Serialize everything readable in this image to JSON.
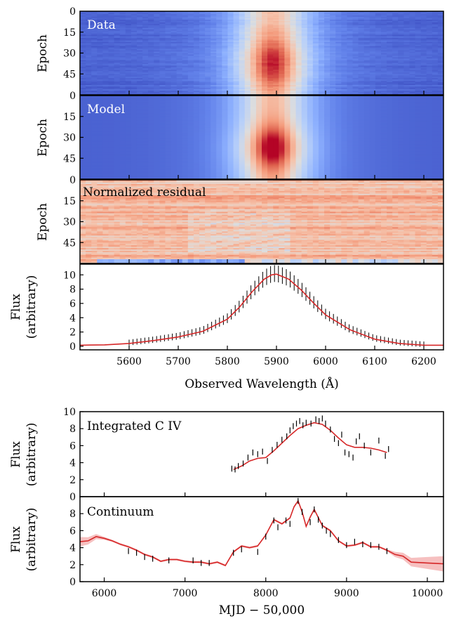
{
  "chart_data": [
    {
      "type": "heatmap",
      "label": "Data",
      "ylabel": "Epoch",
      "yticks": [
        0,
        15,
        30,
        45
      ],
      "ylim": [
        0,
        60
      ],
      "colormap": "coolwarm"
    },
    {
      "type": "heatmap",
      "label": "Model",
      "ylabel": "Epoch",
      "yticks": [
        0,
        15,
        30,
        45
      ],
      "ylim": [
        0,
        60
      ],
      "colormap": "coolwarm"
    },
    {
      "type": "heatmap",
      "label": "Normalized residual",
      "ylabel": "Epoch",
      "yticks": [
        0,
        15,
        30,
        45
      ],
      "ylim": [
        0,
        60
      ],
      "colormap": "coolwarm"
    },
    {
      "type": "line",
      "ylabel": [
        "Flux",
        "(arbitrary)"
      ],
      "xlabel": "Observed Wavelength (Å)",
      "xlim": [
        5500,
        6240
      ],
      "ylim": [
        -0.5,
        11.5
      ],
      "xticks": [
        5600,
        5700,
        5800,
        5900,
        6000,
        6100,
        6200
      ],
      "yticks": [
        0,
        2,
        4,
        6,
        8,
        10
      ],
      "series": [
        {
          "color": "#d62728",
          "x": [
            5500,
            5550,
            5600,
            5650,
            5700,
            5750,
            5800,
            5825,
            5850,
            5875,
            5890,
            5900,
            5925,
            5950,
            5975,
            6000,
            6050,
            6100,
            6150,
            6200,
            6240
          ],
          "y": [
            0.15,
            0.2,
            0.4,
            0.8,
            1.3,
            2.1,
            3.8,
            5.5,
            7.6,
            9.4,
            10.0,
            10.1,
            9.4,
            7.9,
            6.1,
            4.4,
            2.3,
            1.0,
            0.4,
            0.15,
            0.15
          ]
        }
      ]
    },
    {
      "type": "line",
      "label": "Integrated C IV",
      "ylabel": [
        "Flux",
        "(arbitrary)"
      ],
      "xlim": [
        5700,
        10200
      ],
      "ylim": [
        0,
        10
      ],
      "yticks": [
        0,
        2,
        4,
        6,
        8,
        10
      ],
      "series": [
        {
          "color": "#d62728",
          "x": [
            7600,
            7700,
            7800,
            7900,
            8000,
            8100,
            8200,
            8300,
            8400,
            8500,
            8600,
            8700,
            8800,
            8900,
            9000,
            9100,
            9200,
            9300,
            9400,
            9500
          ],
          "y": [
            3.2,
            3.6,
            4.2,
            4.5,
            4.6,
            5.4,
            6.3,
            7.2,
            8.0,
            8.4,
            8.7,
            8.5,
            7.8,
            6.9,
            6.1,
            5.8,
            5.8,
            5.7,
            5.5,
            5.2
          ]
        }
      ],
      "points": {
        "x": [
          7580,
          7620,
          7660,
          7720,
          7780,
          7840,
          7900,
          7960,
          8020,
          8080,
          8140,
          8200,
          8260,
          8300,
          8340,
          8380,
          8420,
          8460,
          8500,
          8560,
          8620,
          8660,
          8700,
          8740,
          8800,
          8850,
          8900,
          8940,
          8980,
          9030,
          9080,
          9120,
          9160,
          9220,
          9300,
          9400,
          9480,
          9520
        ],
        "y": [
          3.3,
          3.2,
          3.6,
          3.9,
          4.6,
          5.2,
          5.0,
          5.3,
          4.2,
          5.5,
          6.1,
          6.7,
          7.1,
          7.8,
          8.3,
          8.6,
          8.9,
          8.4,
          8.7,
          8.6,
          9.1,
          8.9,
          9.2,
          8.6,
          7.9,
          6.8,
          6.3,
          7.3,
          5.2,
          5.0,
          4.6,
          6.5,
          7.1,
          6.0,
          5.2,
          6.6,
          4.8,
          5.6
        ]
      }
    },
    {
      "type": "line",
      "label": "Continuum",
      "ylabel": [
        "Flux",
        "(arbitrary)"
      ],
      "xlabel": "MJD − 50,000",
      "xlim": [
        5700,
        10200
      ],
      "ylim": [
        0,
        10
      ],
      "xticks": [
        6000,
        7000,
        8000,
        9000,
        10000
      ],
      "yticks": [
        0,
        2,
        4,
        6,
        8
      ],
      "series": [
        {
          "color": "#d62728",
          "x": [
            5700,
            5800,
            5900,
            6000,
            6100,
            6200,
            6300,
            6400,
            6500,
            6600,
            6700,
            6800,
            6900,
            7000,
            7100,
            7200,
            7300,
            7400,
            7500,
            7600,
            7700,
            7800,
            7900,
            8000,
            8100,
            8200,
            8300,
            8350,
            8400,
            8450,
            8500,
            8550,
            8600,
            8700,
            8800,
            8900,
            9000,
            9100,
            9200,
            9300,
            9400,
            9500,
            9600,
            9700,
            9800,
            10000,
            10200
          ],
          "y": [
            4.7,
            4.8,
            5.3,
            5.1,
            4.8,
            4.4,
            4.1,
            3.7,
            3.2,
            2.9,
            2.4,
            2.6,
            2.6,
            2.4,
            2.3,
            2.3,
            2.1,
            2.3,
            1.9,
            3.5,
            4.2,
            4.0,
            4.2,
            5.5,
            7.3,
            6.8,
            7.5,
            8.8,
            9.5,
            8.2,
            6.5,
            7.6,
            8.5,
            6.6,
            6.0,
            4.8,
            4.2,
            4.3,
            4.6,
            4.1,
            4.1,
            3.7,
            3.2,
            3.0,
            2.3,
            2.2,
            2.1
          ]
        }
      ],
      "points": {
        "x": [
          6300,
          6400,
          6500,
          6600,
          6800,
          7100,
          7200,
          7300,
          7600,
          7700,
          7900,
          8000,
          8100,
          8150,
          8250,
          8300,
          8400,
          8450,
          8550,
          8600,
          8650,
          8700,
          8750,
          8800,
          8900,
          9000,
          9100,
          9200,
          9300,
          9400,
          9500
        ],
        "y": [
          3.6,
          3.4,
          2.9,
          2.7,
          2.5,
          2.5,
          2.2,
          2.2,
          3.4,
          3.8,
          3.5,
          5.3,
          7.2,
          6.4,
          7.2,
          6.8,
          9.5,
          8.2,
          7.0,
          8.5,
          7.3,
          6.6,
          6.0,
          5.6,
          4.9,
          4.3,
          4.7,
          4.4,
          4.3,
          4.1,
          3.6
        ]
      }
    }
  ]
}
